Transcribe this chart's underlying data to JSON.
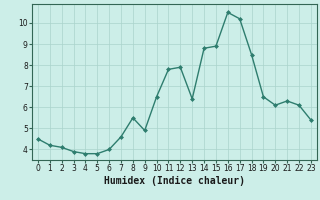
{
  "x": [
    0,
    1,
    2,
    3,
    4,
    5,
    6,
    7,
    8,
    9,
    10,
    11,
    12,
    13,
    14,
    15,
    16,
    17,
    18,
    19,
    20,
    21,
    22,
    23
  ],
  "y": [
    4.5,
    4.2,
    4.1,
    3.9,
    3.8,
    3.8,
    4.0,
    4.6,
    5.5,
    4.9,
    6.5,
    7.8,
    7.9,
    6.4,
    8.8,
    8.9,
    10.5,
    10.2,
    8.5,
    6.5,
    6.1,
    6.3,
    6.1,
    5.4
  ],
  "line_color": "#2e7d6e",
  "marker": "D",
  "marker_size": 2.0,
  "bg_color": "#cceee8",
  "grid_color": "#aad4cc",
  "xlabel": "Humidex (Indice chaleur)",
  "xlim": [
    -0.5,
    23.5
  ],
  "ylim": [
    3.5,
    10.9
  ],
  "yticks": [
    4,
    5,
    6,
    7,
    8,
    9,
    10
  ],
  "xticks": [
    0,
    1,
    2,
    3,
    4,
    5,
    6,
    7,
    8,
    9,
    10,
    11,
    12,
    13,
    14,
    15,
    16,
    17,
    18,
    19,
    20,
    21,
    22,
    23
  ],
  "tick_fontsize": 5.5,
  "xlabel_fontsize": 7.0,
  "linewidth": 1.0,
  "spine_color": "#336655"
}
